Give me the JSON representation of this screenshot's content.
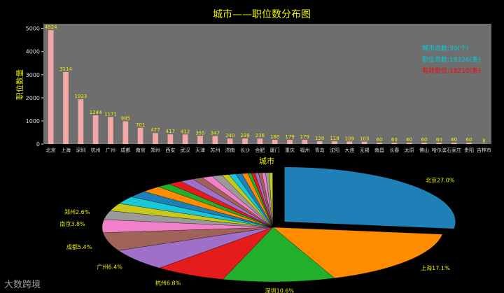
{
  "chart_data": [
    {
      "type": "bar",
      "title": "城市——职位数分布图",
      "xlabel": "城市",
      "ylabel": "职位数量",
      "ylim": [
        0,
        5200
      ],
      "yticks": [
        0,
        1000,
        2000,
        3000,
        4000,
        5000
      ],
      "grid": false,
      "bar_color": "#f4a7a7",
      "plot_bg": "#6e6e6e",
      "categories": [
        "北京",
        "上海",
        "深圳",
        "杭州",
        "广州",
        "成都",
        "南京",
        "郑州",
        "西安",
        "武汉",
        "天津",
        "苏州",
        "济南",
        "长沙",
        "合肥",
        "厦门",
        "重庆",
        "福州",
        "青岛",
        "沈阳",
        "大连",
        "无锡",
        "南昌",
        "长春",
        "太原",
        "佛山",
        "哈尔滨",
        "石家庄",
        "贵阳",
        "吉林市"
      ],
      "values": [
        4924,
        3114,
        1933,
        1244,
        1171,
        985,
        701,
        477,
        417,
        412,
        355,
        347,
        240,
        239,
        236,
        180,
        179,
        179,
        120,
        118,
        109,
        103,
        60,
        60,
        60,
        60,
        60,
        60,
        60,
        8
      ],
      "data_labels": [
        "4924",
        "3114",
        "1933",
        "1244",
        "1171",
        "985",
        "701",
        "477",
        "417",
        "412",
        "355",
        "347",
        "240",
        "239",
        "236",
        "180",
        "179",
        "179",
        "120",
        "118",
        "109",
        "103",
        "60",
        "60",
        "60",
        "60",
        "60",
        "60",
        "60",
        "8"
      ],
      "annotations": [
        {
          "text": "城市总数:30(个)",
          "color": "#00d0e0"
        },
        {
          "text": "职位总数:18326(条)",
          "color": "#00d0e0"
        },
        {
          "text": "有效职位:18210(条)",
          "color": "#ff0000"
        }
      ]
    },
    {
      "type": "pie",
      "title": "",
      "start_angle_deg": 90,
      "explode_first": true,
      "labels": [
        "北京27.0%",
        "上海17.1%",
        "深圳10.6%",
        "杭州6.8%",
        "广州6.4%",
        "成都5.4%",
        "南京3.8%",
        "郑州2.6%"
      ],
      "slices": [
        {
          "city": "北京",
          "value": 4924,
          "color": "#1f80b8"
        },
        {
          "city": "上海",
          "value": 3114,
          "color": "#ff8c00"
        },
        {
          "city": "深圳",
          "value": 1933,
          "color": "#22b02c"
        },
        {
          "city": "杭州",
          "value": 1244,
          "color": "#e41c1c"
        },
        {
          "city": "广州",
          "value": 1171,
          "color": "#a070c8"
        },
        {
          "city": "成都",
          "value": 985,
          "color": "#a0635a"
        },
        {
          "city": "南京",
          "value": 701,
          "color": "#f080c8"
        },
        {
          "city": "郑州",
          "value": 477,
          "color": "#9a9a9a"
        },
        {
          "city": "西安",
          "value": 417,
          "color": "#c8c81c"
        },
        {
          "city": "武汉",
          "value": 412,
          "color": "#18c8d8"
        },
        {
          "city": "天津",
          "value": 355,
          "color": "#1f80b8"
        },
        {
          "city": "苏州",
          "value": 347,
          "color": "#ff8c00"
        },
        {
          "city": "济南",
          "value": 240,
          "color": "#22b02c"
        },
        {
          "city": "长沙",
          "value": 239,
          "color": "#e41c1c"
        },
        {
          "city": "合肥",
          "value": 236,
          "color": "#a070c8"
        },
        {
          "city": "厦门",
          "value": 180,
          "color": "#a0635a"
        },
        {
          "city": "重庆",
          "value": 179,
          "color": "#f080c8"
        },
        {
          "city": "福州",
          "value": 179,
          "color": "#9a9a9a"
        },
        {
          "city": "青岛",
          "value": 120,
          "color": "#c8c81c"
        },
        {
          "city": "沈阳",
          "value": 118,
          "color": "#18c8d8"
        },
        {
          "city": "大连",
          "value": 109,
          "color": "#1f80b8"
        },
        {
          "city": "无锡",
          "value": 103,
          "color": "#ff8c00"
        },
        {
          "city": "南昌",
          "value": 60,
          "color": "#22b02c"
        },
        {
          "city": "长春",
          "value": 60,
          "color": "#e41c1c"
        },
        {
          "city": "太原",
          "value": 60,
          "color": "#a070c8"
        },
        {
          "city": "佛山",
          "value": 60,
          "color": "#a0635a"
        },
        {
          "city": "哈尔滨",
          "value": 60,
          "color": "#f080c8"
        },
        {
          "city": "石家庄",
          "value": 60,
          "color": "#9a9a9a"
        },
        {
          "city": "贵阳",
          "value": 60,
          "color": "#c8c81c"
        },
        {
          "city": "吉林市",
          "value": 8,
          "color": "#18c8d8"
        }
      ]
    }
  ],
  "watermark": "大数跨境"
}
